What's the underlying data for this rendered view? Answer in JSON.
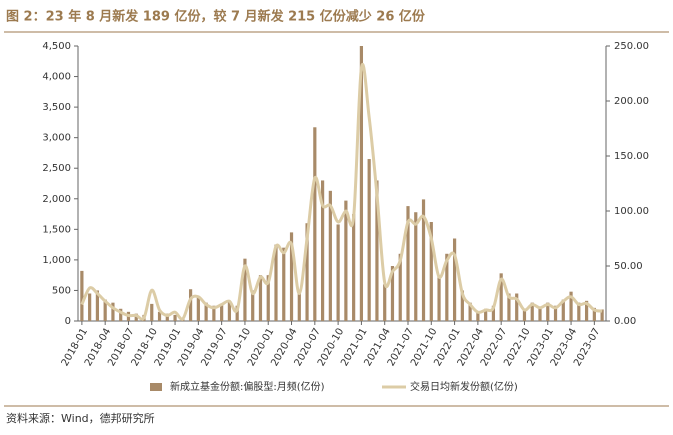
{
  "chart_data": {
    "type": "bar-line",
    "title": "图 2：23 年 8 月新发 189 亿份，较 7 月新发 215 亿份减少 26 亿份",
    "source": "资料来源：Wind，德邦研究所",
    "categories": [
      "2018-01",
      null,
      null,
      "2018-04",
      null,
      null,
      "2018-07",
      null,
      null,
      "2018-10",
      null,
      null,
      "2019-01",
      null,
      null,
      "2019-04",
      null,
      null,
      "2019-07",
      null,
      null,
      "2019-10",
      null,
      null,
      "2020-01",
      null,
      null,
      "2020-04",
      null,
      null,
      "2020-07",
      null,
      null,
      "2020-10",
      null,
      null,
      "2021-01",
      null,
      null,
      "2021-04",
      null,
      null,
      "2021-07",
      null,
      null,
      "2021-10",
      null,
      null,
      "2022-01",
      null,
      null,
      "2022-04",
      null,
      null,
      "2022-07",
      null,
      null,
      "2022-10",
      null,
      null,
      "2023-01",
      null,
      null,
      "2023-04",
      null,
      null,
      "2023-07",
      null
    ],
    "series": [
      {
        "name": "新成立基金份额:偏股型:月频(亿份)",
        "color": "#a88a68",
        "kind": "bar",
        "axis": "y",
        "values": [
          820,
          450,
          500,
          350,
          300,
          200,
          150,
          120,
          100,
          280,
          150,
          120,
          100,
          50,
          520,
          400,
          300,
          250,
          270,
          330,
          250,
          1020,
          500,
          750,
          750,
          1250,
          1200,
          1450,
          500,
          1600,
          3170,
          2300,
          2130,
          1580,
          1970,
          1750,
          4500,
          2650,
          2300,
          600,
          900,
          1100,
          1880,
          1780,
          1990,
          1620,
          750,
          1100,
          1350,
          500,
          300,
          150,
          200,
          250,
          780,
          450,
          450,
          200,
          300,
          200,
          300,
          250,
          350,
          480,
          300,
          330,
          215,
          189
        ]
      },
      {
        "name": "交易日均新发份额(亿份)",
        "color": "#dccca6",
        "kind": "line",
        "axis": "y2",
        "values": [
          15,
          30,
          25,
          18,
          12,
          8,
          5,
          5,
          3,
          28,
          10,
          5,
          8,
          2,
          20,
          22,
          15,
          12,
          15,
          18,
          10,
          50,
          25,
          40,
          35,
          68,
          62,
          70,
          25,
          75,
          130,
          105,
          105,
          90,
          100,
          95,
          230,
          185,
          115,
          35,
          45,
          55,
          90,
          88,
          95,
          75,
          40,
          55,
          60,
          25,
          15,
          8,
          10,
          12,
          38,
          22,
          20,
          10,
          15,
          12,
          15,
          12,
          18,
          22,
          15,
          16,
          10,
          9
        ]
      }
    ],
    "ylim": [
      0,
      4500
    ],
    "yticks": [
      0,
      500,
      {
        "value": 1000,
        "label": "1,000"
      },
      {
        "value": 1500,
        "label": "1,500"
      },
      {
        "value": 2000,
        "label": "2,000"
      },
      {
        "value": 2500,
        "label": "2,500"
      },
      {
        "value": 3000,
        "label": "3,000"
      },
      {
        "value": 3500,
        "label": "3,500"
      },
      {
        "value": 4000,
        "label": "4,000"
      },
      {
        "value": 4500,
        "label": "4,500"
      }
    ],
    "y2lim": [
      0,
      250
    ],
    "y2ticks": [
      {
        "value": 0,
        "label": "0.00"
      },
      {
        "value": 50,
        "label": "50.00"
      },
      {
        "value": 100,
        "label": "100.00"
      },
      {
        "value": 150,
        "label": "150.00"
      },
      {
        "value": 200,
        "label": "200.00"
      },
      {
        "value": 250,
        "label": "250.00"
      }
    ]
  }
}
